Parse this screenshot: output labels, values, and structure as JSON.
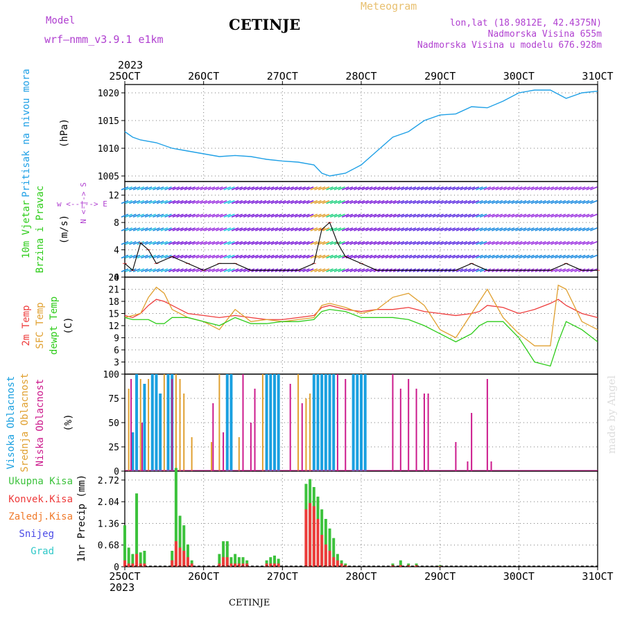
{
  "header": {
    "model_label": "Model",
    "model_name": "wrf—nmm_v3.9.1  e1km",
    "station": "CETINJE",
    "product": "Meteogram",
    "coords": "lon,lat (18.9812E, 42.4375N)",
    "altitude": "Nadmorska Visina 655m",
    "model_altitude": "Nadmorska Visina u modelu 676.928m",
    "footer_station": "CETINJE",
    "credit": "made by Angel",
    "year_top": "2023",
    "year_bottom": "2023"
  },
  "colors": {
    "pressure": "#1fa0e6",
    "temp2m": "#ee3b3b",
    "sfc": "#e0a030",
    "dewpt": "#2ecc1a",
    "violet": "#b040d0",
    "magenta": "#cc1a8c",
    "high_cloud": "#1aa0e0",
    "mid_cloud": "#e0a030",
    "low_cloud": "#cc1a8c",
    "precip_total": "#3cc23c",
    "precip_conv": "#ee3b3b",
    "precip_frozen": "#f07a2a",
    "snow": "#4a4ae6",
    "graupel": "#30c8c8",
    "credit": "#dddddd"
  },
  "time_axis": {
    "labels": [
      "25OCT",
      "26OCT",
      "27OCT",
      "28OCT",
      "29OCT",
      "30OCT",
      "31OCT"
    ],
    "start_day": 25,
    "end_day": 31
  },
  "chart_data": [
    {
      "id": "pressure",
      "type": "line",
      "label_main": "Pritisak na nivou mora",
      "unit": "(hPa)",
      "ylim": [
        1004,
        1021.5
      ],
      "yticks": [
        1005,
        1010,
        1015,
        1020
      ],
      "x": [
        25.0,
        25.1,
        25.2,
        25.4,
        25.6,
        25.8,
        26.0,
        26.2,
        26.4,
        26.6,
        26.8,
        27.0,
        27.2,
        27.4,
        27.5,
        27.6,
        27.8,
        28.0,
        28.2,
        28.4,
        28.6,
        28.8,
        29.0,
        29.2,
        29.4,
        29.6,
        29.8,
        30.0,
        30.2,
        30.4,
        30.6,
        30.8,
        31.0
      ],
      "y": [
        1013.0,
        1012.0,
        1011.5,
        1011.0,
        1010.0,
        1009.5,
        1009.0,
        1008.5,
        1008.7,
        1008.5,
        1008.0,
        1007.7,
        1007.5,
        1007.0,
        1005.5,
        1005.0,
        1005.5,
        1007.0,
        1009.5,
        1012.0,
        1013.0,
        1015.0,
        1016.0,
        1016.2,
        1017.5,
        1017.3,
        1018.5,
        1020.0,
        1020.5,
        1020.5,
        1019.0,
        1020.0,
        1020.3
      ]
    },
    {
      "id": "wind",
      "type": "line",
      "label_main": "10m Vjetar",
      "label_sub": "Brzina i Pravac",
      "unit": "(m/s)",
      "compass": "w  <--|-->  E",
      "compass_ns": "N  <-|->  S",
      "ylim": [
        0,
        14
      ],
      "yticks": [
        0,
        4,
        8,
        12
      ],
      "speed_x": [
        25.0,
        25.1,
        25.2,
        25.3,
        25.4,
        25.6,
        25.8,
        26.0,
        26.2,
        26.4,
        26.6,
        26.8,
        27.0,
        27.2,
        27.4,
        27.5,
        27.6,
        27.7,
        27.8,
        28.0,
        28.2,
        28.4,
        28.6,
        28.8,
        29.0,
        29.2,
        29.4,
        29.6,
        29.8,
        30.0,
        30.2,
        30.4,
        30.6,
        30.8,
        31.0
      ],
      "speed_y": [
        2,
        1,
        5,
        4,
        2,
        3,
        2,
        1,
        2,
        2,
        1,
        1,
        1,
        1,
        2,
        7,
        8,
        5,
        3,
        2,
        1,
        1,
        1,
        1,
        1,
        1,
        2,
        1,
        1,
        1,
        1,
        1,
        2,
        1,
        1
      ],
      "barb_rows": [
        1,
        3,
        5,
        7,
        9,
        11,
        13
      ]
    },
    {
      "id": "temperature",
      "type": "line",
      "labels": [
        "2m Temp",
        "SFC Temp",
        "dewpt Temp"
      ],
      "unit": "(C)",
      "ylim": [
        0,
        24
      ],
      "yticks": [
        3,
        6,
        9,
        12,
        15,
        18,
        21,
        24
      ],
      "x": [
        25.0,
        25.1,
        25.2,
        25.3,
        25.4,
        25.5,
        25.6,
        25.8,
        26.0,
        26.2,
        26.4,
        26.6,
        26.8,
        27.0,
        27.2,
        27.4,
        27.5,
        27.6,
        27.8,
        28.0,
        28.2,
        28.4,
        28.6,
        28.8,
        29.0,
        29.2,
        29.4,
        29.5,
        29.6,
        29.8,
        30.0,
        30.2,
        30.4,
        30.5,
        30.6,
        30.8,
        31.0
      ],
      "series": [
        {
          "name": "2m Temp",
          "color_key": "temp2m",
          "values": [
            14.5,
            14,
            15,
            17,
            18.5,
            18,
            17,
            15,
            14.5,
            14,
            14.5,
            14,
            13.5,
            13.5,
            14,
            14.5,
            16.5,
            17,
            16,
            15.5,
            16,
            16,
            16.5,
            15.5,
            15,
            14.5,
            15,
            15.5,
            17,
            16.5,
            15,
            16,
            17.5,
            18.5,
            17,
            15,
            14
          ]
        },
        {
          "name": "SFC Temp",
          "color_key": "sfc",
          "values": [
            14,
            14.5,
            15,
            19,
            21.5,
            20,
            16,
            14,
            13,
            11,
            16,
            13,
            13.5,
            13,
            13.5,
            14,
            17,
            17.5,
            16.5,
            15,
            16,
            19,
            20,
            17,
            11,
            9,
            15,
            18,
            21,
            14,
            10,
            7,
            7,
            22,
            21,
            13,
            11
          ]
        },
        {
          "name": "dewpt Temp",
          "color_key": "dewpt",
          "values": [
            14,
            13.5,
            13.5,
            13.5,
            12.5,
            12.5,
            14,
            14,
            13,
            12,
            14,
            12.5,
            12.5,
            13,
            13,
            13.5,
            15.5,
            16,
            15.5,
            14,
            14,
            14,
            13.5,
            12,
            10,
            8,
            10,
            12,
            13,
            13,
            9,
            3,
            2,
            8,
            13,
            11,
            8
          ]
        }
      ]
    },
    {
      "id": "cloud",
      "type": "bar",
      "labels": [
        "Visoka Oblacnost",
        "Srednja Oblacnost",
        "Niska Oblacnost"
      ],
      "unit": "(%)",
      "ylim": [
        0,
        100
      ],
      "yticks": [
        0,
        25,
        50,
        75,
        100
      ],
      "series": [
        {
          "name": "Visoka Oblacnost",
          "color_key": "high_cloud",
          "x": [
            25.1,
            25.15,
            25.25,
            25.35,
            25.4,
            25.45,
            25.55,
            25.6,
            26.3,
            26.35,
            26.8,
            26.85,
            26.9,
            26.95,
            27.4,
            27.45,
            27.5,
            27.55,
            27.6,
            27.65,
            27.9,
            27.95,
            28.0,
            28.05
          ],
          "values": [
            40,
            100,
            90,
            100,
            100,
            80,
            100,
            100,
            100,
            100,
            100,
            100,
            100,
            100,
            100,
            100,
            100,
            100,
            100,
            100,
            100,
            100,
            100,
            100
          ]
        },
        {
          "name": "Srednja Oblacnost",
          "color_key": "mid_cloud",
          "x": [
            25.05,
            25.2,
            25.3,
            25.5,
            25.65,
            25.7,
            25.75,
            25.85,
            26.1,
            26.2,
            26.45,
            26.75,
            27.2,
            27.3,
            27.35
          ],
          "values": [
            85,
            95,
            95,
            100,
            100,
            95,
            80,
            35,
            30,
            100,
            35,
            100,
            100,
            75,
            80
          ]
        },
        {
          "name": "Niska Oblacnost",
          "color_key": "low_cloud",
          "x": [
            25.08,
            25.22,
            25.6,
            26.12,
            26.25,
            26.5,
            26.6,
            26.65,
            27.1,
            27.25,
            27.7,
            27.8,
            28.4,
            28.5,
            28.6,
            28.7,
            28.8,
            28.85,
            29.2,
            29.35,
            29.4,
            29.6,
            29.65
          ],
          "values": [
            95,
            50,
            95,
            70,
            40,
            100,
            50,
            85,
            90,
            70,
            100,
            95,
            100,
            85,
            95,
            85,
            80,
            80,
            30,
            10,
            60,
            95,
            10
          ]
        }
      ]
    },
    {
      "id": "precip",
      "type": "bar",
      "labels": [
        "Ukupna Kisa",
        "Konvek.Kisa",
        "Zaledj.Kisa",
        "Snijeg",
        "Grad"
      ],
      "ylabel": "1hr Precip (mm)",
      "ylim": [
        0,
        3.0
      ],
      "yticks": [
        0,
        0.68,
        1.36,
        2.04,
        2.72
      ],
      "x": [
        25.0,
        25.05,
        25.1,
        25.15,
        25.2,
        25.25,
        25.6,
        25.65,
        25.7,
        25.75,
        25.8,
        25.85,
        26.2,
        26.25,
        26.3,
        26.35,
        26.4,
        26.45,
        26.5,
        26.55,
        26.8,
        26.85,
        26.9,
        26.95,
        27.3,
        27.35,
        27.4,
        27.45,
        27.5,
        27.55,
        27.6,
        27.65,
        27.7,
        27.75,
        27.8,
        28.4,
        28.5,
        28.6,
        28.7,
        29.0
      ],
      "series": [
        {
          "name": "Ukupna Kisa",
          "color_key": "precip_total",
          "values": [
            1.3,
            0.6,
            0.4,
            2.3,
            0.45,
            0.5,
            0.5,
            3.1,
            1.6,
            1.3,
            0.7,
            0.2,
            0.4,
            0.8,
            0.8,
            0.3,
            0.4,
            0.3,
            0.3,
            0.2,
            0.2,
            0.3,
            0.35,
            0.25,
            2.6,
            2.75,
            2.5,
            2.2,
            1.8,
            1.5,
            1.2,
            0.9,
            0.4,
            0.2,
            0.1,
            0.1,
            0.2,
            0.1,
            0.1,
            0.05
          ]
        },
        {
          "name": "Konvek.Kisa",
          "color_key": "precip_conv",
          "values": [
            0.2,
            0.1,
            0.1,
            0.4,
            0.1,
            0.1,
            0.2,
            0.8,
            0.6,
            0.5,
            0.3,
            0.1,
            0.1,
            0.3,
            0.3,
            0.1,
            0.1,
            0.1,
            0.1,
            0.1,
            0.1,
            0.1,
            0.1,
            0.1,
            1.8,
            2.0,
            1.9,
            1.5,
            1.0,
            0.7,
            0.5,
            0.3,
            0.2,
            0.1,
            0.05,
            0.05,
            0.05,
            0.05,
            0.05,
            0.02
          ]
        }
      ]
    }
  ]
}
